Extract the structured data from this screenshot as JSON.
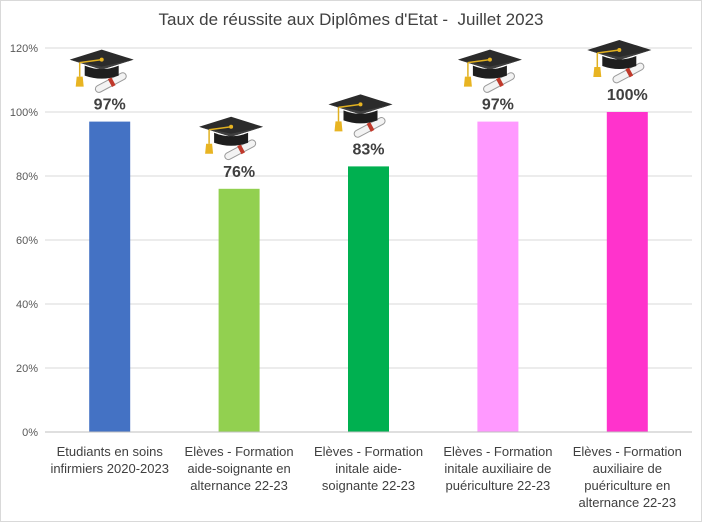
{
  "chart_data": {
    "type": "bar",
    "title": "Taux de réussite aux Diplômes d'Etat -  Juillet 2023",
    "categories": [
      [
        "Etudiants en soins",
        "infirmiers 2020-2023"
      ],
      [
        "Elèves - Formation",
        "aide-soignante en",
        "alternance 22-23"
      ],
      [
        "Elèves - Formation",
        "initale aide-",
        "soignante 22-23"
      ],
      [
        "Elèves - Formation",
        "initale auxiliaire de",
        "puériculture 22-23"
      ],
      [
        "Elèves - Formation",
        "auxiliaire de",
        "puériculture en",
        "alternance 22-23"
      ]
    ],
    "values": [
      97,
      76,
      83,
      97,
      100
    ],
    "data_labels": [
      "97%",
      "76%",
      "83%",
      "97%",
      "100%"
    ],
    "colors": [
      "#4472c4",
      "#92d050",
      "#00b050",
      "#ff99ff",
      "#ff33cc"
    ],
    "ylim": [
      0,
      120
    ],
    "yticks": [
      "0%",
      "20%",
      "40%",
      "60%",
      "80%",
      "100%",
      "120%"
    ],
    "grid": true,
    "legend": "none",
    "decoration": "graduation-cap-icon"
  }
}
